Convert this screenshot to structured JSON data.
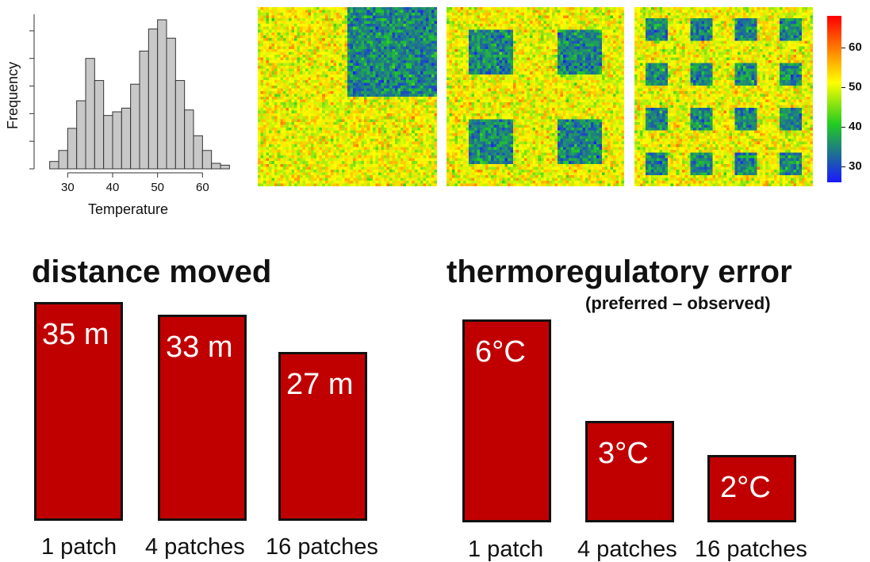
{
  "chart_data": [
    {
      "type": "bar",
      "title": "",
      "xlabel": "Temperature",
      "ylabel": "Frequency",
      "xlim": [
        25,
        67
      ],
      "x_ticks": [
        "30",
        "40",
        "50",
        "60"
      ],
      "bin_width": 2,
      "bin_starts": [
        26,
        28,
        30,
        32,
        34,
        36,
        38,
        40,
        42,
        44,
        46,
        48,
        50,
        52,
        54,
        56,
        58,
        60,
        62,
        64
      ],
      "values": [
        4,
        10,
        22,
        37,
        60,
        48,
        29,
        31,
        33,
        46,
        64,
        76,
        81,
        71,
        48,
        32,
        18,
        10,
        3,
        2
      ],
      "ylim": [
        0,
        84
      ]
    },
    {
      "type": "heatmap",
      "panels": [
        {
          "patches": 1,
          "cool_blocks_per_side": 1
        },
        {
          "patches": 4,
          "cool_blocks_per_side": 2
        },
        {
          "patches": 16,
          "cool_blocks_per_side": 4
        }
      ],
      "value_range": [
        26,
        68
      ],
      "colorbar_ticks": [
        "30",
        "40",
        "50",
        "60"
      ],
      "colors": [
        "#1a1aff",
        "#22cc22",
        "#ffff00",
        "#ff0000"
      ]
    },
    {
      "type": "bar",
      "title": "distance moved",
      "subtitle": "",
      "categories": [
        "1 patch",
        "4 patches",
        "16 patches"
      ],
      "values": [
        35,
        33,
        27
      ],
      "value_labels": [
        "35 m",
        "33 m",
        "27 m"
      ],
      "unit": "m",
      "color": "#c00000"
    },
    {
      "type": "bar",
      "title": "thermoregulatory error",
      "subtitle": "(preferred – observed)",
      "categories": [
        "1 patch",
        "4 patches",
        "16 patches"
      ],
      "values": [
        6,
        3,
        2
      ],
      "value_labels": [
        "6°C",
        "3°C",
        "2°C"
      ],
      "unit": "°C",
      "color": "#c00000"
    }
  ]
}
